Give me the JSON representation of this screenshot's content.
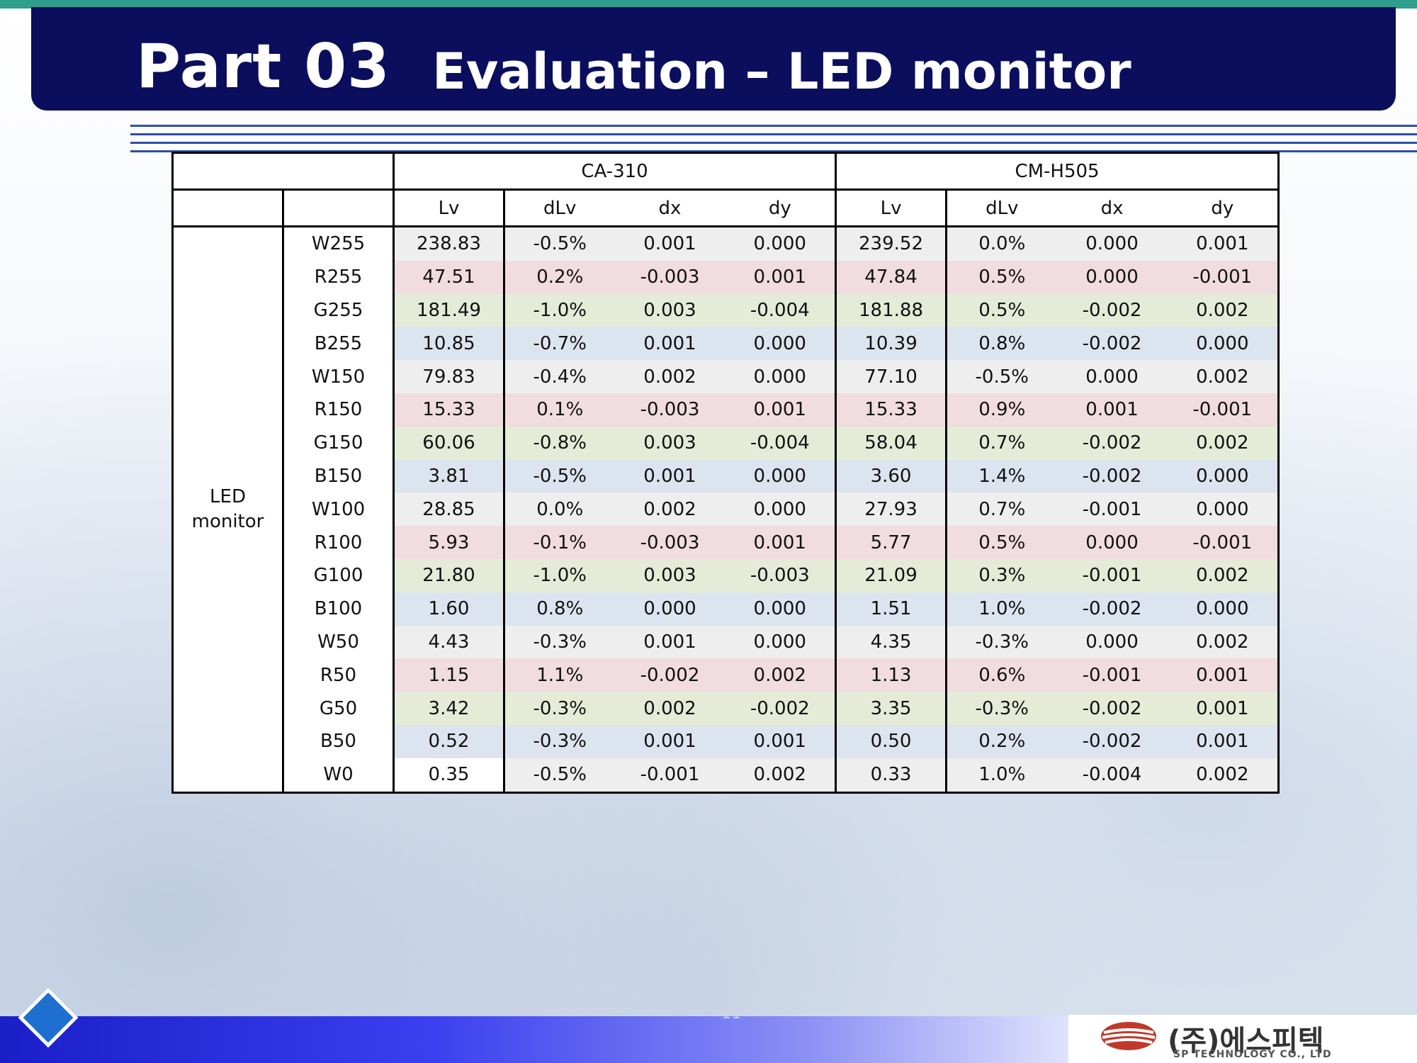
{
  "header": {
    "part": "Part 03",
    "title": "Evaluation – LED monitor"
  },
  "table": {
    "group_label": "LED monitor",
    "instruments": [
      "CA-310",
      "CM-H505"
    ],
    "columns": [
      "Lv",
      "dLv",
      "dx",
      "dy",
      "Lv",
      "dLv",
      "dx",
      "dy"
    ],
    "rows": [
      {
        "name": "W255",
        "tone": "w",
        "vals": [
          "238.83",
          "-0.5%",
          "0.001",
          "0.000",
          "239.52",
          "0.0%",
          "0.000",
          "0.001"
        ]
      },
      {
        "name": "R255",
        "tone": "r",
        "vals": [
          "47.51",
          "0.2%",
          "-0.003",
          "0.001",
          "47.84",
          "0.5%",
          "0.000",
          "-0.001"
        ]
      },
      {
        "name": "G255",
        "tone": "g",
        "vals": [
          "181.49",
          "-1.0%",
          "0.003",
          "-0.004",
          "181.88",
          "0.5%",
          "-0.002",
          "0.002"
        ]
      },
      {
        "name": "B255",
        "tone": "b",
        "vals": [
          "10.85",
          "-0.7%",
          "0.001",
          "0.000",
          "10.39",
          "0.8%",
          "-0.002",
          "0.000"
        ]
      },
      {
        "name": "W150",
        "tone": "w",
        "vals": [
          "79.83",
          "-0.4%",
          "0.002",
          "0.000",
          "77.10",
          "-0.5%",
          "0.000",
          "0.002"
        ]
      },
      {
        "name": "R150",
        "tone": "r",
        "vals": [
          "15.33",
          "0.1%",
          "-0.003",
          "0.001",
          "15.33",
          "0.9%",
          "0.001",
          "-0.001"
        ]
      },
      {
        "name": "G150",
        "tone": "g",
        "vals": [
          "60.06",
          "-0.8%",
          "0.003",
          "-0.004",
          "58.04",
          "0.7%",
          "-0.002",
          "0.002"
        ]
      },
      {
        "name": "B150",
        "tone": "b",
        "vals": [
          "3.81",
          "-0.5%",
          "0.001",
          "0.000",
          "3.60",
          "1.4%",
          "-0.002",
          "0.000"
        ]
      },
      {
        "name": "W100",
        "tone": "w",
        "vals": [
          "28.85",
          "0.0%",
          "0.002",
          "0.000",
          "27.93",
          "0.7%",
          "-0.001",
          "0.000"
        ]
      },
      {
        "name": "R100",
        "tone": "r",
        "vals": [
          "5.93",
          "-0.1%",
          "-0.003",
          "0.001",
          "5.77",
          "0.5%",
          "0.000",
          "-0.001"
        ]
      },
      {
        "name": "G100",
        "tone": "g",
        "vals": [
          "21.80",
          "-1.0%",
          "0.003",
          "-0.003",
          "21.09",
          "0.3%",
          "-0.001",
          "0.002"
        ]
      },
      {
        "name": "B100",
        "tone": "b",
        "vals": [
          "1.60",
          "0.8%",
          "0.000",
          "0.000",
          "1.51",
          "1.0%",
          "-0.002",
          "0.000"
        ]
      },
      {
        "name": "W50",
        "tone": "w",
        "vals": [
          "4.43",
          "-0.3%",
          "0.001",
          "0.000",
          "4.35",
          "-0.3%",
          "0.000",
          "0.002"
        ]
      },
      {
        "name": "R50",
        "tone": "r",
        "vals": [
          "1.15",
          "1.1%",
          "-0.002",
          "0.002",
          "1.13",
          "0.6%",
          "-0.001",
          "0.001"
        ]
      },
      {
        "name": "G50",
        "tone": "g",
        "vals": [
          "3.42",
          "-0.3%",
          "0.002",
          "-0.002",
          "3.35",
          "-0.3%",
          "-0.002",
          "0.001"
        ]
      },
      {
        "name": "B50",
        "tone": "b",
        "vals": [
          "0.52",
          "-0.3%",
          "0.001",
          "0.001",
          "0.50",
          "0.2%",
          "-0.002",
          "0.001"
        ]
      },
      {
        "name": "W0",
        "tone": "w",
        "vals": [
          "0.35",
          "-0.5%",
          "-0.001",
          "0.002",
          "0.33",
          "1.0%",
          "-0.004",
          "0.002"
        ]
      }
    ]
  },
  "footer": {
    "page_number": "11",
    "logo_korean": "(주)에스피텍",
    "logo_english": "SP TECHNOLOGY CO., LTD"
  },
  "colors": {
    "header_bg": "#0a0e5c",
    "top_accent": "#2f9e8c",
    "row_white": "#eeeeee",
    "row_red": "#f1dcdf",
    "row_green": "#e4ecd8",
    "row_blue": "#dce4ef"
  }
}
